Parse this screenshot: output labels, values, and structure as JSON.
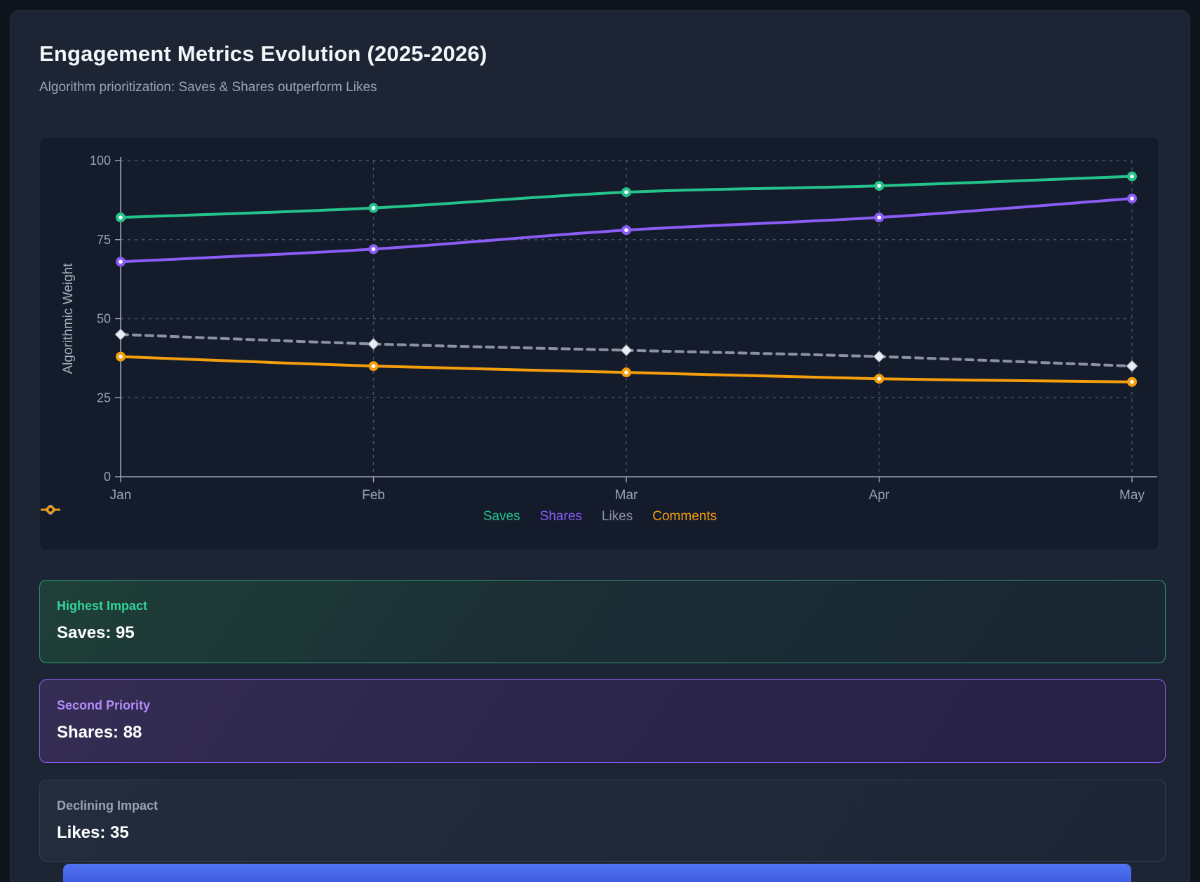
{
  "page": {
    "title": "Engagement Metrics Evolution (2025-2026)",
    "subtitle": "Algorithm prioritization: Saves & Shares outperform Likes"
  },
  "chart_data": {
    "type": "line",
    "title": "",
    "xlabel": "",
    "ylabel": "Algorithmic Weight",
    "ylim": [
      0,
      100
    ],
    "yticks": [
      0,
      25,
      50,
      75,
      100
    ],
    "grid": true,
    "legend_position": "bottom",
    "categories": [
      "Jan",
      "Feb",
      "Mar",
      "Apr",
      "May"
    ],
    "series": [
      {
        "name": "Saves",
        "color": "#25c38c",
        "line_style": "solid",
        "marker": "circle",
        "marker_color": "#25c38c",
        "values": [
          82,
          85,
          90,
          92,
          95
        ]
      },
      {
        "name": "Shares",
        "color": "#8b5cf6",
        "line_style": "solid",
        "marker": "circle",
        "marker_color": "#8b5cf6",
        "values": [
          68,
          72,
          78,
          82,
          88
        ]
      },
      {
        "name": "Likes",
        "color": "#8b92a2",
        "line_style": "dashed",
        "marker": "diamond",
        "marker_color": "#e9ecf2",
        "values": [
          45,
          42,
          40,
          38,
          35
        ]
      },
      {
        "name": "Comments",
        "color": "#f59e0b",
        "line_style": "solid",
        "marker": "circle",
        "marker_color": "#f59e0b",
        "values": [
          38,
          35,
          33,
          31,
          30
        ]
      }
    ]
  },
  "cards": [
    {
      "label": "Highest Impact",
      "value": "Saves: 95",
      "accent": "#34d399"
    },
    {
      "label": "Second Priority",
      "value": "Shares: 88",
      "accent": "#b18cf8"
    },
    {
      "label": "Declining Impact",
      "value": "Likes: 35",
      "accent": "#97a2b4"
    }
  ],
  "colors": {
    "page_bg": "#0f141d",
    "card_bg": "#1d2534",
    "panel_bg": "#141b2b",
    "axis_line": "#9aa2b1",
    "tick_text": "#99a3b2",
    "grid_line": "#4a5468",
    "bottom_bar": "#4565e6"
  }
}
